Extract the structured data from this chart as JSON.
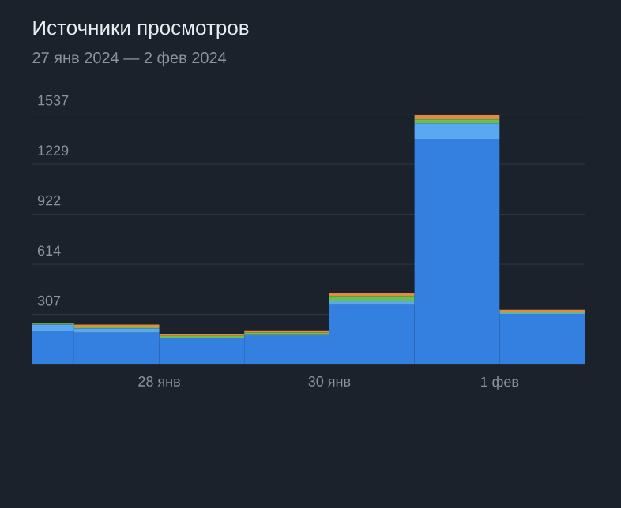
{
  "chart_data": {
    "type": "bar",
    "title": "Источники просмотров",
    "subtitle": "27 янв 2024 — 2 фев 2024",
    "x": [
      "2024-01-26T12:00",
      "2024-01-27T12:00",
      "2024-01-28T12:00",
      "2024-01-29T12:00",
      "2024-01-30T12:00",
      "2024-01-31T12:00",
      "2024-02-01T12:00"
    ],
    "series": [
      {
        "color": "#3380e0",
        "values": [
          205,
          195,
          160,
          175,
          365,
          1385,
          310
        ]
      },
      {
        "color": "#5aa8f0",
        "values": [
          40,
          25,
          5,
          5,
          25,
          95,
          5
        ]
      },
      {
        "color": "#6cbf4a",
        "values": [
          5,
          10,
          10,
          15,
          30,
          25,
          5
        ]
      },
      {
        "color": "#e08a45",
        "values": [
          5,
          15,
          10,
          15,
          20,
          25,
          15
        ]
      }
    ],
    "stacked": true,
    "xlim": [
      "2024-01-26T12:00",
      "2024-02-02"
    ],
    "xticks": [
      {
        "value": "2024-01-28",
        "label": "28 янв"
      },
      {
        "value": "2024-01-30",
        "label": "30 янв"
      },
      {
        "value": "2024-02-01",
        "label": "1 фев"
      }
    ],
    "ylim": [
      0,
      1537
    ],
    "yticks": [
      307,
      614,
      922,
      1229,
      1537
    ],
    "grid": "y"
  }
}
